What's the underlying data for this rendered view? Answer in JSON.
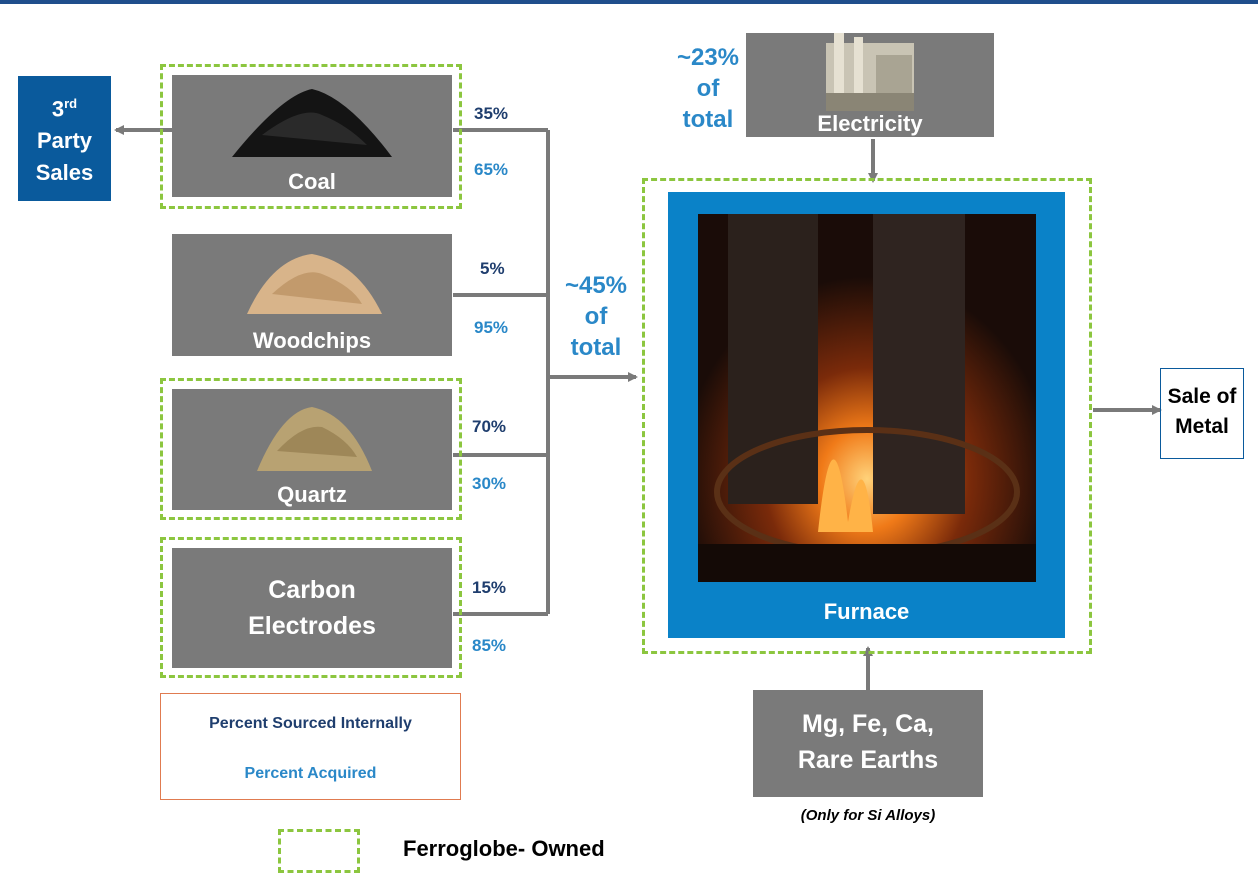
{
  "third_party": {
    "num": "3",
    "sup": "rd",
    "line2": "Party",
    "line3": "Sales"
  },
  "inputs": {
    "coal": {
      "label": "Coal",
      "internal": "35%",
      "acquired": "65%"
    },
    "woodchips": {
      "label": "Woodchips",
      "internal": "5%",
      "acquired": "95%"
    },
    "quartz": {
      "label": "Quartz",
      "internal": "70%",
      "acquired": "30%"
    },
    "electrodes": {
      "line1": "Carbon",
      "line2": "Electrodes",
      "internal": "15%",
      "acquired": "85%"
    }
  },
  "total_note": {
    "line1": "~45%",
    "line2": "of",
    "line3": "total"
  },
  "electricity": {
    "label": "Electricity",
    "note1": "~23%",
    "note2": "of",
    "note3": "total"
  },
  "furnace": {
    "label": "Furnace"
  },
  "sale": {
    "line1": "Sale of",
    "line2": "Metal"
  },
  "additives": {
    "line1": "Mg, Fe, Ca,",
    "line2": "Rare Earths",
    "note": "(Only for Si Alloys)"
  },
  "key": {
    "internal": "Percent Sourced Internally",
    "acquired": "Percent Acquired"
  },
  "owned_legend": "Ferroglobe- Owned",
  "colors": {
    "dark_blue": "#1f3e6e",
    "light_blue": "#2a88c8",
    "box_blue": "#0a5a9c",
    "gray": "#7a7a7a",
    "green": "#8cc63f"
  }
}
